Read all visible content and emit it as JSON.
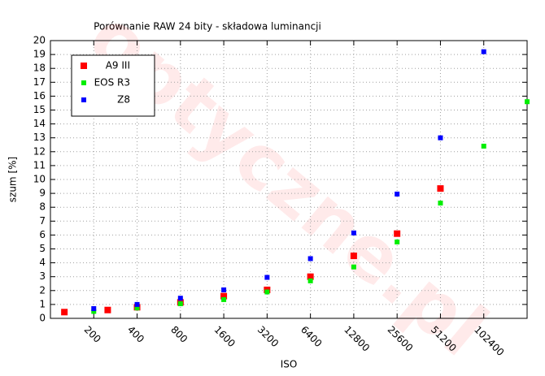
{
  "chart_data": {
    "type": "scatter",
    "title": "Porównanie RAW 24 bity - składowa luminancji",
    "xlabel": "ISO",
    "ylabel": "szum [%]",
    "watermark": "optyczne.pl",
    "xscale": "log",
    "xlim": [
      100,
      204800
    ],
    "xticks": [
      200,
      400,
      800,
      1600,
      3200,
      6400,
      12800,
      25600,
      51200,
      102400
    ],
    "ylim": [
      0,
      20
    ],
    "yticks": [
      0,
      1,
      2,
      3,
      4,
      5,
      6,
      7,
      8,
      9,
      10,
      11,
      12,
      13,
      14,
      15,
      16,
      17,
      18,
      19,
      20
    ],
    "grid": true,
    "legend": "upper-left",
    "series": [
      {
        "name": "A9 III",
        "color": "#ff0000",
        "marker_size": 8,
        "x": [
          125,
          250,
          400,
          800,
          1600,
          3200,
          6400,
          12800,
          25600,
          51200
        ],
        "values": [
          0.45,
          0.6,
          0.8,
          1.15,
          1.6,
          2.05,
          3.0,
          4.5,
          6.1,
          9.35
        ]
      },
      {
        "name": "EOS R3",
        "color": "#00ee00",
        "marker_size": 6,
        "x": [
          200,
          400,
          800,
          1600,
          3200,
          6400,
          12800,
          25600,
          51200,
          102400,
          204800
        ],
        "values": [
          0.5,
          0.75,
          1.05,
          1.35,
          1.9,
          2.7,
          3.7,
          5.5,
          8.3,
          12.4,
          15.6
        ]
      },
      {
        "name": "Z8",
        "color": "#0000ff",
        "marker_size": 6,
        "x": [
          200,
          400,
          800,
          1600,
          3200,
          6400,
          12800,
          25600,
          51200,
          102400
        ],
        "values": [
          0.7,
          1.0,
          1.45,
          2.05,
          2.95,
          4.3,
          6.15,
          8.95,
          13.0,
          19.2
        ]
      }
    ]
  }
}
